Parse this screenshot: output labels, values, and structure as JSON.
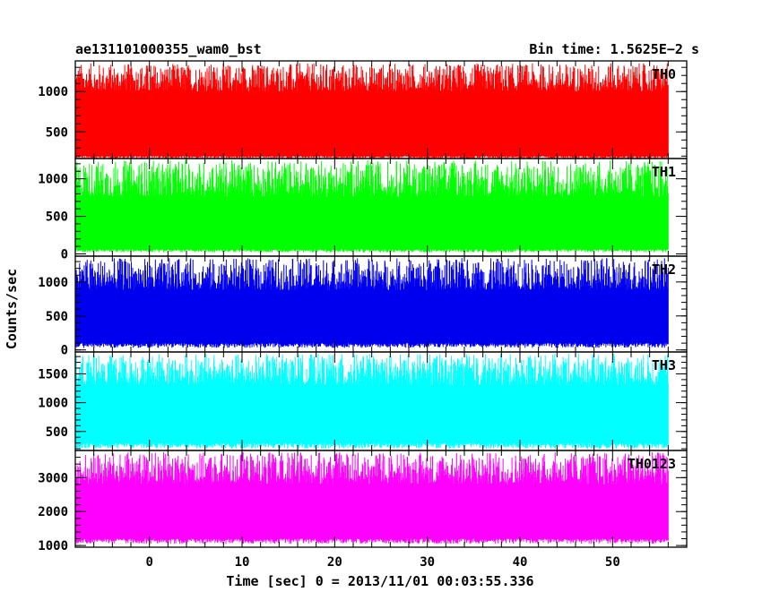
{
  "chart_data": {
    "type": "line",
    "title_left": "ae131101000355_wam0_bst",
    "title_right": "Bin time: 1.5625E−2 s",
    "xlabel": "Time [sec] 0 = 2013/11/01 00:03:55.336",
    "ylabel": "Counts/sec",
    "xlim": [
      -8,
      58
    ],
    "x_ticks": [
      0,
      10,
      20,
      30,
      40,
      50
    ],
    "x_range_data": [
      -8,
      56
    ],
    "bin_time_s": 0.015625,
    "panels": [
      {
        "name": "TH0",
        "color": "#ff0000",
        "ylim": [
          170,
          1380
        ],
        "y_ticks": [
          500,
          1000
        ],
        "band_low": 200,
        "band_high": 1000,
        "spike_max": 1350,
        "baseline_min": 170
      },
      {
        "name": "TH1",
        "color": "#00ff00",
        "ylim": [
          -30,
          1270
        ],
        "y_ticks": [
          0,
          500,
          1000
        ],
        "band_low": 60,
        "band_high": 760,
        "spike_max": 1250,
        "baseline_min": 20
      },
      {
        "name": "TH2",
        "color": "#0000ee",
        "ylim": [
          -30,
          1380
        ],
        "y_ticks": [
          0,
          500,
          1000
        ],
        "band_low": 100,
        "band_high": 880,
        "spike_max": 1350,
        "baseline_min": 30
      },
      {
        "name": "TH3",
        "color": "#00ffff",
        "ylim": [
          170,
          1880
        ],
        "y_ticks": [
          500,
          1000,
          1500
        ],
        "band_low": 300,
        "band_high": 1300,
        "spike_max": 1850,
        "baseline_min": 200
      },
      {
        "name": "TH0123",
        "color": "#ff00ff",
        "ylim": [
          950,
          3800
        ],
        "y_ticks": [
          1000,
          2000,
          3000
        ],
        "band_low": 1200,
        "band_high": 2800,
        "spike_max": 3750,
        "baseline_min": 1050
      }
    ]
  }
}
